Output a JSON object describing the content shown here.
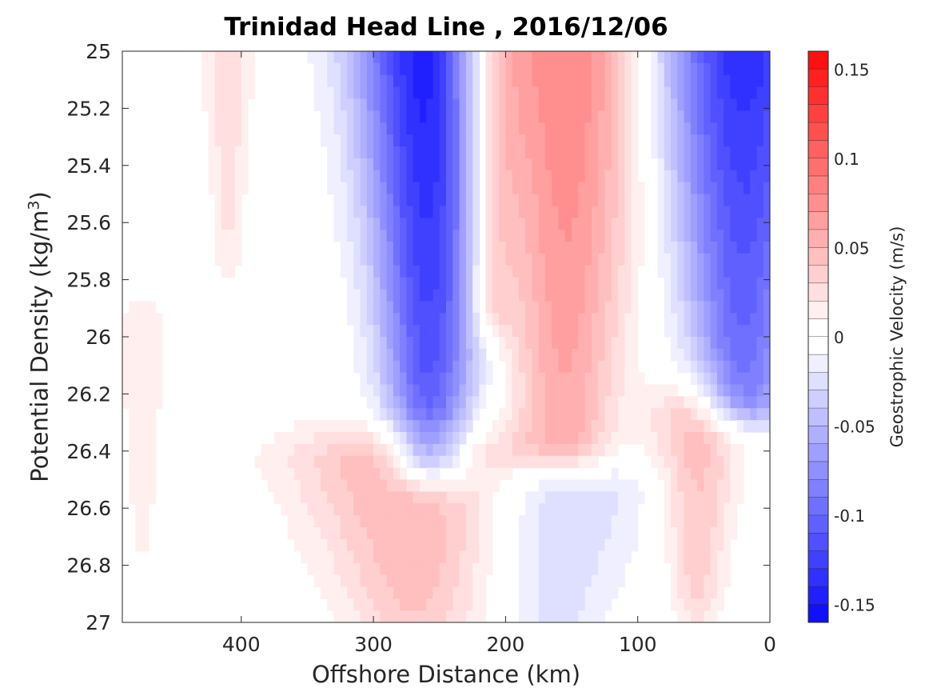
{
  "chart_data": {
    "type": "heatmap",
    "subtype": "filled-contour",
    "title": "Trinidad Head Line , 2016/12/06",
    "xlabel": "Offshore Distance (km)",
    "ylabel_prefix": "Potential Density (kg/m",
    "ylabel_superscript": "3",
    "ylabel_suffix": ")",
    "xlim": [
      490,
      0
    ],
    "x_reversed": true,
    "ylim": [
      27,
      25
    ],
    "y_reversed": true,
    "x_ticks": [
      400,
      300,
      200,
      100,
      0
    ],
    "x_tick_labels": [
      "400",
      "300",
      "200",
      "100",
      "0"
    ],
    "y_ticks": [
      25,
      25.2,
      25.4,
      25.6,
      25.8,
      26,
      26.2,
      26.4,
      26.6,
      26.8,
      27
    ],
    "y_tick_labels": [
      "25",
      "25.2",
      "25.4",
      "25.6",
      "25.8",
      "26",
      "26.2",
      "26.4",
      "26.6",
      "26.8",
      "27"
    ],
    "colorbar": {
      "label": "Geostrophic Velocity (m/s)",
      "range": [
        -0.16,
        0.16
      ],
      "levels_step": 0.01,
      "ticks": [
        0.15,
        0.1,
        0.05,
        0,
        -0.05,
        -0.1,
        -0.15
      ],
      "tick_labels": [
        "0.15",
        "0.1",
        "0.05",
        "0",
        "-0.05",
        "-0.1",
        "-0.15"
      ],
      "colormap": "blue-white-red",
      "negative_color": "#0000ff",
      "positive_color": "#ff0000",
      "zero_color": "#ffffff"
    },
    "features": [
      {
        "name": "western blue jet",
        "x_center": 258,
        "x_width": 55,
        "y_top": 25.0,
        "y_bottom": 26.4,
        "peak": -0.155
      },
      {
        "name": "central red jet",
        "x_center": 155,
        "x_width": 65,
        "y_top": 25.0,
        "y_bottom": 26.35,
        "peak": 0.085
      },
      {
        "name": "red core near 210 km",
        "x_center": 212,
        "x_width": 30,
        "y_top": 25.0,
        "y_bottom": 25.9,
        "peak": 0.06
      },
      {
        "name": "eastern blue jet",
        "x_center": 20,
        "x_width": 65,
        "y_top": 25.0,
        "y_bottom": 26.2,
        "peak": -0.14
      },
      {
        "name": "deep red lobe",
        "x_center": 270,
        "x_width": 90,
        "y_top": 26.45,
        "y_bottom": 27.0,
        "peak": 0.06
      },
      {
        "name": "deep blue lobe",
        "x_center": 160,
        "x_width": 70,
        "y_top": 26.55,
        "y_bottom": 27.0,
        "peak": -0.035
      },
      {
        "name": "deep eastern red lobe",
        "x_center": 55,
        "x_width": 35,
        "y_top": 26.3,
        "y_bottom": 26.9,
        "peak": 0.05
      },
      {
        "name": "western weak red",
        "x_center": 410,
        "x_width": 20,
        "y_top": 25.0,
        "y_bottom": 25.7,
        "peak": 0.03
      },
      {
        "name": "far west weak red",
        "x_center": 475,
        "x_width": 20,
        "y_top": 26.0,
        "y_bottom": 26.7,
        "peak": 0.02
      }
    ],
    "grid": false
  }
}
